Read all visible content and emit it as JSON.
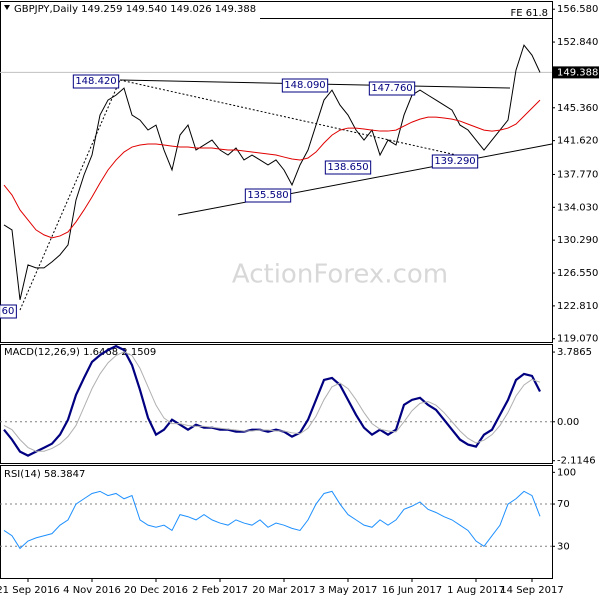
{
  "chart_data": [
    {
      "type": "line",
      "title": "GBPJPY,Daily 149.259 149.540 149.026 149.388",
      "watermark": "ActionForex.com",
      "fib_label": "FE 61.8",
      "annotations": [
        "148.420",
        "148.090",
        "147.760",
        "138.650",
        "139.290",
        "135.580",
        "60"
      ],
      "ylim": [
        118.7,
        157.4
      ],
      "yticks": [
        {
          "value": 156.58,
          "label": "156.580"
        },
        {
          "value": 152.84,
          "label": "152.840"
        },
        {
          "value": 145.36,
          "label": "145.360"
        },
        {
          "value": 141.62,
          "label": "141.620"
        },
        {
          "value": 137.77,
          "label": "137.770"
        },
        {
          "value": 134.03,
          "label": "134.030"
        },
        {
          "value": 130.29,
          "label": "130.290"
        },
        {
          "value": 126.55,
          "label": "126.550"
        },
        {
          "value": 122.81,
          "label": "122.810"
        },
        {
          "value": 119.07,
          "label": "119.070"
        }
      ],
      "last_price": 149.388,
      "grid": false,
      "series": [
        {
          "color": "#000000",
          "values": [
            132.03,
            131.46,
            123.5,
            127.48,
            127.14,
            127.14,
            127.82,
            128.62,
            129.75,
            134.87,
            137.71,
            139.98,
            144.53,
            146.24,
            146.8,
            147.6,
            144.53,
            143.96,
            142.83,
            143.39,
            140.55,
            138.28,
            142.26,
            143.39,
            140.55,
            141.12,
            141.69,
            140.55,
            139.98,
            140.78,
            139.42,
            139.98,
            139.42,
            138.85,
            139.42,
            138.28,
            136.58,
            138.85,
            140.55,
            143.39,
            146.24,
            147.37,
            145.67,
            144.53,
            142.83,
            141.69,
            142.83,
            139.98,
            141.69,
            141.12,
            144.53,
            146.8,
            147.37,
            146.8,
            146.24,
            145.67,
            145.1,
            143.39,
            142.83,
            141.69,
            140.55,
            141.69,
            142.83,
            143.96,
            149.65,
            152.49,
            151.35,
            149.388
          ]
        },
        {
          "color": "#e00000",
          "values": [
            136.57,
            135.43,
            133.73,
            132.59,
            131.46,
            130.89,
            130.55,
            130.77,
            131.23,
            132.37,
            133.73,
            135.21,
            136.8,
            138.28,
            139.41,
            140.32,
            140.89,
            141.12,
            141.23,
            141.23,
            141.12,
            141.0,
            140.89,
            140.89,
            140.78,
            140.78,
            140.78,
            140.66,
            140.55,
            140.55,
            140.44,
            140.32,
            140.21,
            140.1,
            139.98,
            139.75,
            139.53,
            139.41,
            139.64,
            140.32,
            141.35,
            142.25,
            142.82,
            143.05,
            143.05,
            142.94,
            142.82,
            142.71,
            142.71,
            142.82,
            143.28,
            143.73,
            144.07,
            144.3,
            144.3,
            144.19,
            144.07,
            143.85,
            143.5,
            143.16,
            142.82,
            142.71,
            142.82,
            143.05,
            143.5,
            144.41,
            145.32,
            146.23
          ]
        }
      ]
    },
    {
      "type": "line",
      "title": "MACD(12,26,9) 1.6468 2.1509",
      "ylim": [
        -2.24,
        4.17
      ],
      "yticks": [
        3.7865,
        {
          "value": 0,
          "label": "0.00"
        },
        -2.1146
      ],
      "levels": [
        0
      ],
      "series": [
        {
          "color": "#000080",
          "values": [
            -0.43,
            -0.97,
            -1.62,
            -1.84,
            -1.62,
            -1.41,
            -1.19,
            -0.7,
            0.11,
            1.46,
            2.38,
            3.25,
            3.62,
            3.9,
            4.11,
            3.9,
            3.08,
            1.73,
            0.22,
            -0.7,
            -0.43,
            0.11,
            -0.16,
            -0.43,
            -0.16,
            -0.32,
            -0.32,
            -0.43,
            -0.43,
            -0.54,
            -0.54,
            -0.43,
            -0.43,
            -0.54,
            -0.43,
            -0.54,
            -0.81,
            -0.6,
            0.11,
            1.19,
            2.27,
            2.38,
            2.0,
            1.19,
            0.38,
            -0.32,
            -0.7,
            -0.43,
            -0.7,
            -0.43,
            0.92,
            1.19,
            1.3,
            0.92,
            0.65,
            0.11,
            -0.43,
            -0.97,
            -1.24,
            -1.35,
            -0.7,
            -0.43,
            0.38,
            1.19,
            2.27,
            2.6,
            2.49,
            1.6468
          ]
        },
        {
          "color": "#b0b0b0",
          "values": [
            -0.2,
            -0.43,
            -0.97,
            -1.4,
            -1.6,
            -1.6,
            -1.45,
            -1.2,
            -0.8,
            -0.2,
            0.8,
            1.8,
            2.6,
            3.2,
            3.6,
            3.8,
            3.6,
            2.9,
            1.9,
            0.9,
            0.2,
            -0.1,
            -0.1,
            -0.2,
            -0.25,
            -0.25,
            -0.3,
            -0.35,
            -0.4,
            -0.45,
            -0.5,
            -0.5,
            -0.45,
            -0.45,
            -0.5,
            -0.5,
            -0.6,
            -0.65,
            -0.35,
            0.3,
            1.2,
            1.9,
            2.1,
            1.8,
            1.2,
            0.5,
            -0.1,
            -0.4,
            -0.5,
            -0.55,
            0.0,
            0.6,
            1.0,
            1.1,
            0.9,
            0.5,
            0.0,
            -0.5,
            -0.9,
            -1.15,
            -1.0,
            -0.7,
            -0.2,
            0.5,
            1.4,
            2.0,
            2.3,
            2.1509
          ]
        }
      ]
    },
    {
      "type": "line",
      "title": "RSI(14) 58.3847",
      "ylim": [
        0,
        106
      ],
      "yticks": [
        100,
        70,
        30
      ],
      "levels": [
        70,
        30
      ],
      "categories": [
        null,
        null,
        null,
        "21 Sep 2016",
        null,
        null,
        null,
        null,
        null,
        null,
        null,
        "4 Nov 2016",
        null,
        null,
        null,
        null,
        null,
        null,
        null,
        "20 Dec 2016",
        null,
        null,
        null,
        null,
        null,
        null,
        null,
        "2 Feb 2017",
        null,
        null,
        null,
        null,
        null,
        null,
        null,
        "20 Mar 2017",
        null,
        null,
        null,
        null,
        null,
        null,
        null,
        "3 May 2017",
        null,
        null,
        null,
        null,
        null,
        null,
        null,
        "16 Jun 2017",
        null,
        null,
        null,
        null,
        null,
        null,
        null,
        "1 Aug 2017",
        null,
        null,
        null,
        null,
        null,
        null,
        "14 Sep 2017",
        null
      ],
      "series": [
        {
          "color": "#1e90ff",
          "values": [
            45,
            40,
            28,
            35,
            38,
            40,
            42,
            50,
            55,
            70,
            75,
            80,
            82,
            78,
            80,
            75,
            78,
            55,
            50,
            48,
            50,
            45,
            60,
            58,
            55,
            60,
            55,
            52,
            50,
            55,
            52,
            50,
            55,
            48,
            52,
            50,
            47,
            45,
            55,
            70,
            80,
            82,
            70,
            60,
            55,
            50,
            48,
            55,
            50,
            55,
            65,
            68,
            72,
            65,
            62,
            58,
            55,
            50,
            45,
            35,
            30,
            40,
            50,
            70,
            75,
            82,
            78,
            58.3847
          ]
        }
      ]
    }
  ]
}
